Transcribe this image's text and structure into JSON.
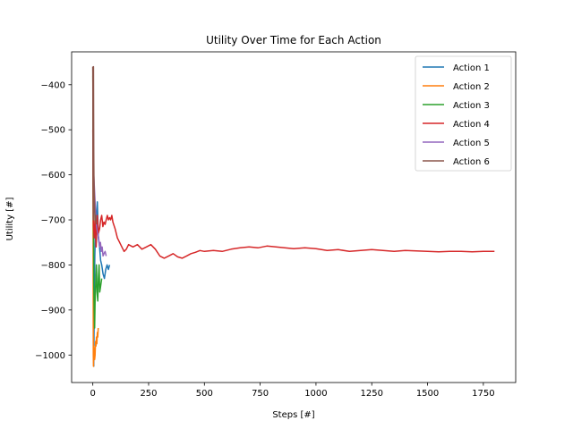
{
  "chart_data": {
    "type": "line",
    "title": "Utility Over Time for Each Action",
    "xlabel": "Steps [#]",
    "ylabel": "Utility [#]",
    "xlim": [
      -95,
      1895
    ],
    "ylim": [
      -1061,
      -327
    ],
    "xticks": [
      0,
      250,
      500,
      750,
      1000,
      1250,
      1500,
      1750
    ],
    "yticks": [
      -1000,
      -900,
      -800,
      -700,
      -600,
      -500,
      -400
    ],
    "legend_position": "top-right",
    "series": [
      {
        "name": "Action 1",
        "color": "#1f77b4",
        "x": [
          0,
          2,
          4,
          6,
          9,
          12,
          16,
          20,
          25,
          30,
          35,
          40,
          46,
          52,
          58,
          64,
          70,
          75
        ],
        "y": [
          -360,
          -700,
          -1025,
          -900,
          -780,
          -720,
          -700,
          -660,
          -740,
          -760,
          -790,
          -800,
          -820,
          -830,
          -810,
          -800,
          -810,
          -800
        ]
      },
      {
        "name": "Action 2",
        "color": "#ff7f0e",
        "x": [
          0,
          1,
          2,
          3,
          4,
          6,
          8,
          10,
          12,
          14,
          16,
          18,
          20,
          22,
          24
        ],
        "y": [
          -360,
          -600,
          -1000,
          -1025,
          -980,
          -990,
          -1010,
          -1000,
          -970,
          -980,
          -960,
          -975,
          -950,
          -960,
          -940
        ]
      },
      {
        "name": "Action 3",
        "color": "#2ca02c",
        "x": [
          0,
          2,
          4,
          6,
          8,
          10,
          13,
          16,
          19,
          22,
          25,
          28,
          31,
          34,
          37,
          40
        ],
        "y": [
          -380,
          -550,
          -840,
          -900,
          -940,
          -880,
          -840,
          -800,
          -860,
          -880,
          -830,
          -800,
          -860,
          -850,
          -840,
          -830
        ]
      },
      {
        "name": "Action 4",
        "color": "#d62728",
        "x": [
          0,
          3,
          6,
          10,
          15,
          20,
          25,
          30,
          35,
          40,
          45,
          50,
          55,
          60,
          65,
          70,
          75,
          80,
          85,
          90,
          100,
          110,
          120,
          130,
          140,
          150,
          160,
          180,
          200,
          220,
          240,
          260,
          280,
          300,
          320,
          340,
          360,
          380,
          400,
          420,
          440,
          460,
          480,
          500,
          540,
          580,
          620,
          660,
          700,
          740,
          780,
          820,
          860,
          900,
          950,
          1000,
          1050,
          1100,
          1150,
          1200,
          1250,
          1300,
          1350,
          1400,
          1450,
          1500,
          1550,
          1600,
          1650,
          1700,
          1750,
          1800
        ],
        "y": [
          -500,
          -710,
          -740,
          -700,
          -760,
          -690,
          -730,
          -720,
          -700,
          -690,
          -715,
          -705,
          -710,
          -700,
          -690,
          -700,
          -695,
          -700,
          -690,
          -705,
          -720,
          -740,
          -750,
          -760,
          -770,
          -765,
          -755,
          -760,
          -755,
          -765,
          -760,
          -755,
          -765,
          -780,
          -785,
          -780,
          -775,
          -782,
          -785,
          -780,
          -775,
          -772,
          -768,
          -770,
          -768,
          -770,
          -765,
          -762,
          -760,
          -762,
          -758,
          -760,
          -762,
          -764,
          -762,
          -764,
          -768,
          -766,
          -770,
          -768,
          -766,
          -768,
          -770,
          -768,
          -769,
          -770,
          -771,
          -770,
          -770,
          -771,
          -770,
          -770
        ]
      },
      {
        "name": "Action 5",
        "color": "#9467bd",
        "x": [
          0,
          2,
          4,
          6,
          8,
          10,
          14,
          18,
          22,
          26,
          30,
          34,
          38,
          42,
          46,
          50,
          55,
          60
        ],
        "y": [
          -360,
          -480,
          -600,
          -620,
          -640,
          -660,
          -700,
          -720,
          -730,
          -740,
          -760,
          -750,
          -770,
          -760,
          -780,
          -775,
          -770,
          -780
        ]
      },
      {
        "name": "Action 6",
        "color": "#8c564b",
        "x": [
          0,
          1,
          2,
          3,
          4,
          5,
          6,
          8,
          10,
          12,
          14,
          16
        ],
        "y": [
          -360,
          -620,
          -700,
          -360,
          -550,
          -600,
          -640,
          -680,
          -700,
          -690,
          -700,
          -710
        ]
      }
    ]
  }
}
